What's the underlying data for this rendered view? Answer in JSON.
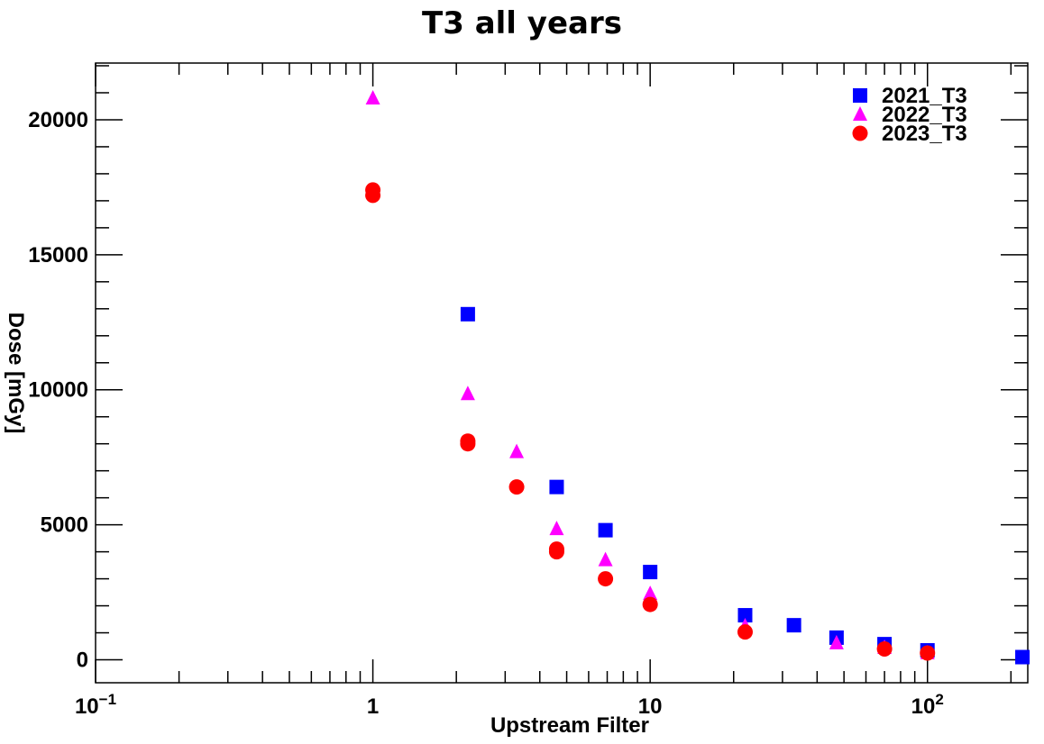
{
  "chart_data": {
    "type": "scatter",
    "title": "T3 all years",
    "xlabel": "Upstream Filter",
    "ylabel": "Dose [mGy]",
    "xscale": "log",
    "xlim": [
      0.1,
      230
    ],
    "ylim": [
      -850,
      22100
    ],
    "x_ticks": [
      {
        "value": 0.1,
        "base": "10",
        "exp": "−1"
      },
      {
        "value": 1,
        "label": "1"
      },
      {
        "value": 10,
        "label": "10"
      },
      {
        "value": 100,
        "base": "10",
        "exp": "2"
      }
    ],
    "y_ticks": [
      0,
      5000,
      10000,
      15000,
      20000
    ],
    "legend_position": "top-right",
    "grid": false,
    "series": [
      {
        "name": "2021_T3",
        "marker": "square",
        "color": "#0000ff",
        "points": [
          [
            2.2,
            12800
          ],
          [
            4.6,
            6400
          ],
          [
            6.9,
            4800
          ],
          [
            10,
            3250
          ],
          [
            22,
            1650
          ],
          [
            33,
            1280
          ],
          [
            47,
            820
          ],
          [
            70,
            580
          ],
          [
            100,
            350
          ],
          [
            220,
            100
          ]
        ]
      },
      {
        "name": "2022_T3",
        "marker": "triangle",
        "color": "#ff00ff",
        "points": [
          [
            1,
            20800
          ],
          [
            2.2,
            9850
          ],
          [
            3.3,
            7700
          ],
          [
            4.6,
            4850
          ],
          [
            6.9,
            3700
          ],
          [
            10,
            2450
          ],
          [
            22,
            1250
          ],
          [
            47,
            620
          ],
          [
            70,
            450
          ],
          [
            100,
            250
          ]
        ]
      },
      {
        "name": "2023_T3",
        "marker": "circle",
        "color": "#ff0000",
        "points": [
          [
            1,
            17400
          ],
          [
            1,
            17200
          ],
          [
            2.2,
            8100
          ],
          [
            2.2,
            8000
          ],
          [
            3.3,
            6400
          ],
          [
            4.6,
            4100
          ],
          [
            4.6,
            4000
          ],
          [
            6.9,
            3000
          ],
          [
            10,
            2050
          ],
          [
            22,
            1030
          ],
          [
            70,
            400
          ],
          [
            100,
            250
          ]
        ]
      }
    ]
  }
}
